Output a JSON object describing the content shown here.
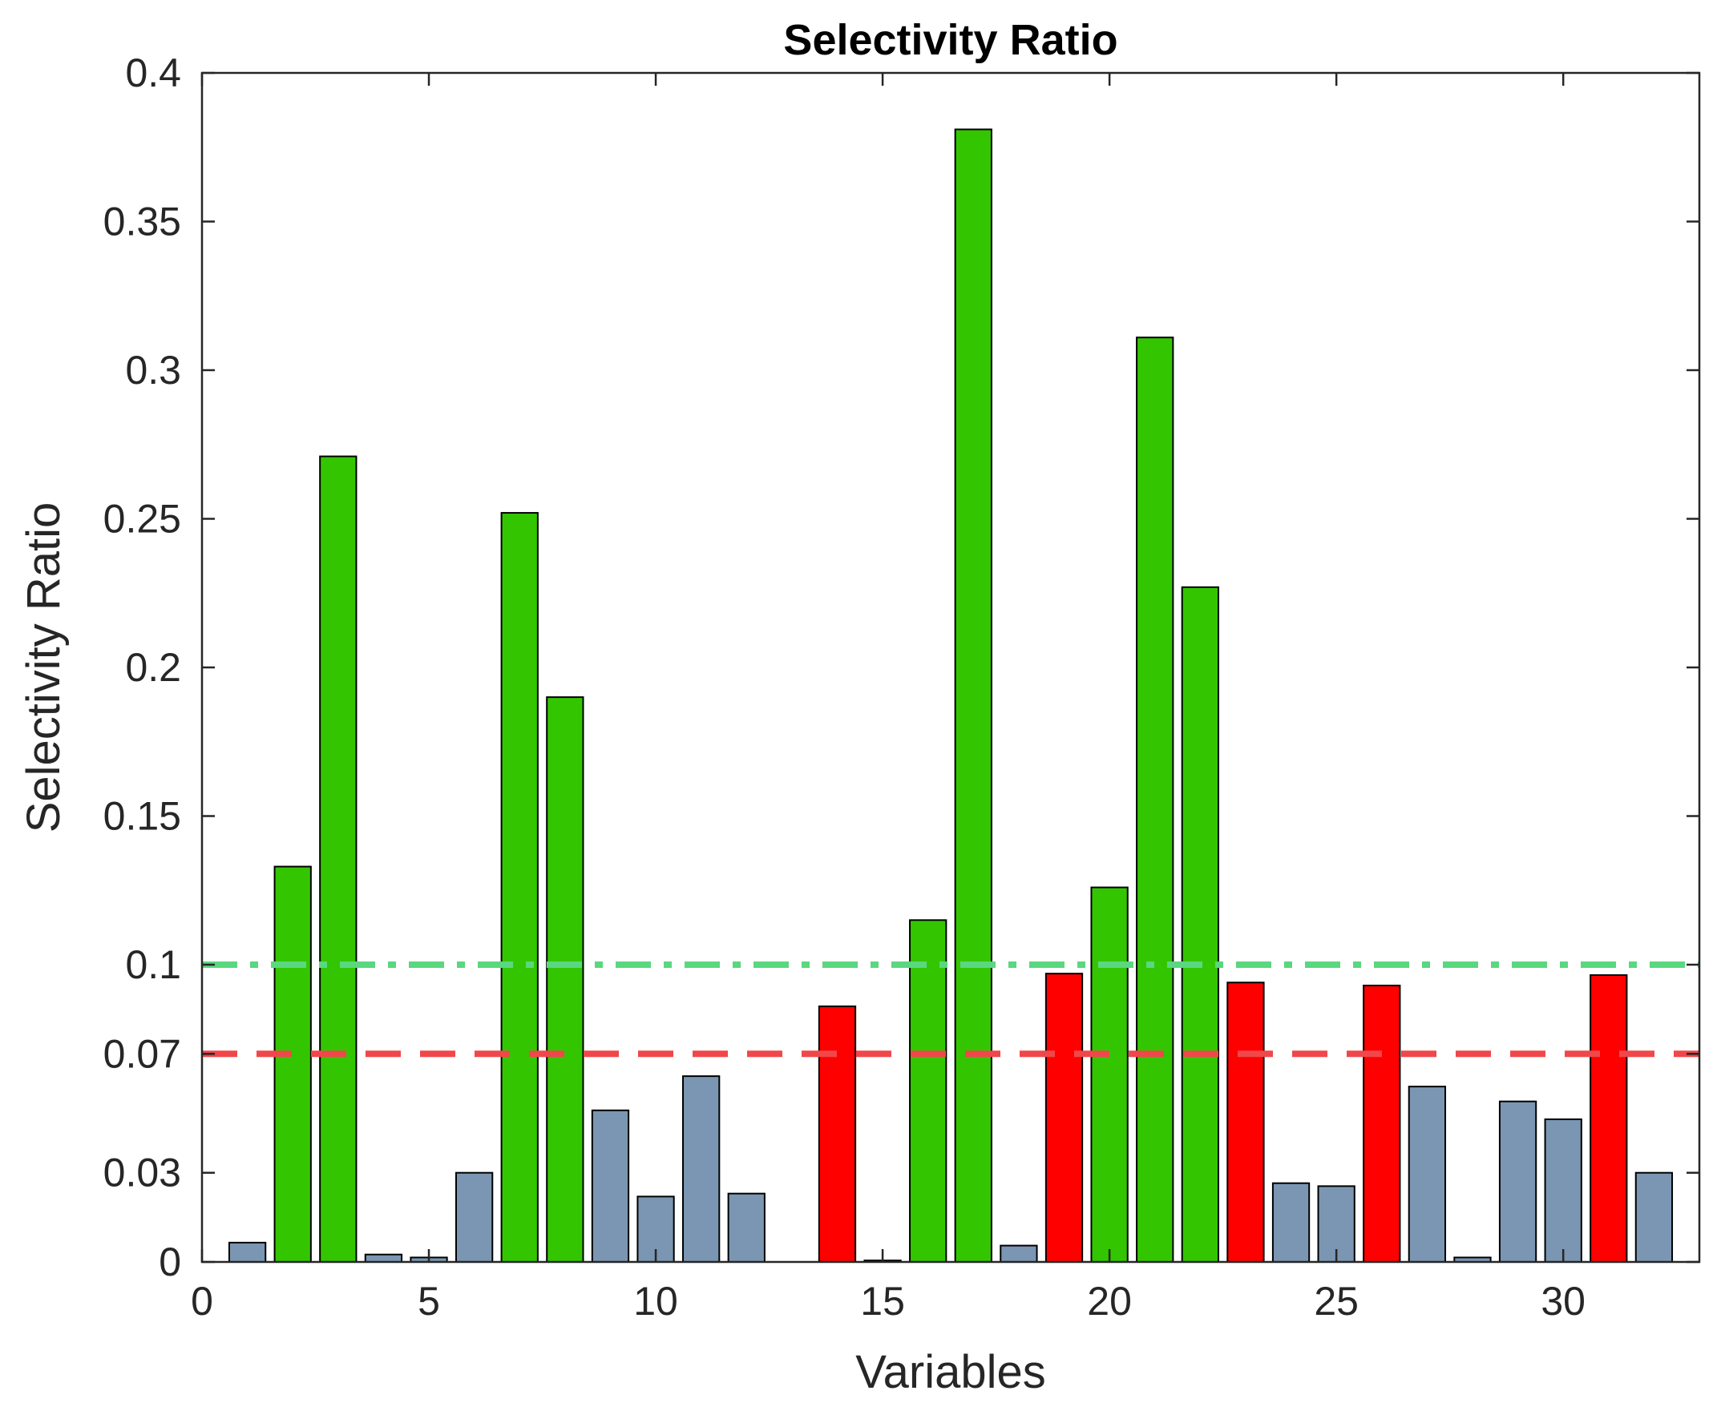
{
  "chart_data": {
    "type": "bar",
    "title": "Selectivity Ratio",
    "xlabel": "Variables",
    "ylabel": "Selectivity Ratio",
    "xlim": [
      0,
      33
    ],
    "ylim": [
      0,
      0.4
    ],
    "xticks": [
      0,
      5,
      10,
      15,
      20,
      25,
      30
    ],
    "yticks": [
      0,
      0.03,
      0.07,
      0.1,
      0.15,
      0.2,
      0.25,
      0.3,
      0.35,
      0.4
    ],
    "ytick_labels": [
      "0",
      "0.03",
      "0.07",
      "0.1",
      "0.15",
      "0.2",
      "0.25",
      "0.3",
      "0.35",
      "0.4"
    ],
    "grid": false,
    "categories": [
      1,
      2,
      3,
      4,
      5,
      6,
      7,
      8,
      9,
      10,
      11,
      12,
      13,
      14,
      15,
      16,
      17,
      18,
      19,
      20,
      21,
      22,
      23,
      24,
      25,
      26,
      27,
      28,
      29,
      30,
      31,
      32
    ],
    "values": [
      0.0065,
      0.133,
      0.271,
      0.0025,
      0.0015,
      0.03,
      0.252,
      0.19,
      0.051,
      0.022,
      0.0625,
      0.023,
      0,
      0.086,
      0.0005,
      0.115,
      0.381,
      0.0055,
      0.097,
      0.126,
      0.311,
      0.227,
      0.094,
      0.0265,
      0.0255,
      0.093,
      0.059,
      0.0015,
      0.054,
      0.048,
      0.0965,
      0.03
    ],
    "bar_classes": [
      "below",
      "important",
      "important",
      "below",
      "below",
      "below",
      "important",
      "important",
      "below",
      "below",
      "below",
      "below",
      "below",
      "intermediate",
      "below",
      "important",
      "important",
      "below",
      "intermediate",
      "important",
      "important",
      "important",
      "intermediate",
      "below",
      "below",
      "intermediate",
      "below",
      "below",
      "below",
      "below",
      "intermediate",
      "below"
    ],
    "class_colors": {
      "important": "#33c600",
      "intermediate": "#ff0000",
      "below": "#7a96b2"
    },
    "reference_lines": [
      {
        "name": "upper-threshold",
        "value": 0.1,
        "style": "dash-dot",
        "color": "#5ad77f"
      },
      {
        "name": "lower-threshold",
        "value": 0.07,
        "style": "dashed",
        "color": "#f0474a"
      }
    ]
  }
}
